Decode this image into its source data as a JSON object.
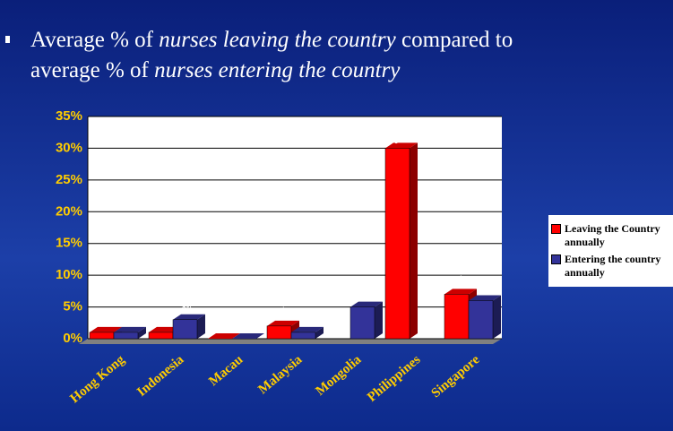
{
  "chart_data": {
    "type": "bar",
    "title": [
      "Average % of ",
      "nurses leaving the country",
      " compared to",
      "average % of ",
      "nurses entering the country"
    ],
    "title_italic": [
      false,
      true,
      false,
      false,
      true
    ],
    "categories": [
      "Hong Kong",
      "Indonesia",
      "Macau",
      "Malaysia",
      "Mongolia",
      "Philippines",
      "Singapore"
    ],
    "series": [
      {
        "name": "Leaving the Country annually",
        "color": "#ff0000",
        "values": [
          1,
          1,
          0,
          2,
          null,
          30,
          7
        ],
        "value_labels": [
          "1%",
          "1%",
          "0%",
          "2%",
          null,
          "30%",
          "7%"
        ]
      },
      {
        "name": "Entering the country annually",
        "color": "#333399",
        "values": [
          1,
          3,
          0,
          1,
          5,
          null,
          6
        ],
        "value_labels": [
          "1%",
          "3%",
          "0%",
          "1%",
          "5%",
          null,
          "6%"
        ]
      }
    ],
    "ylim": [
      0,
      35
    ],
    "yticks": [
      {
        "value": 0,
        "label": "0%"
      },
      {
        "value": 5,
        "label": "5%"
      },
      {
        "value": 10,
        "label": "10%"
      },
      {
        "value": 15,
        "label": "15%"
      },
      {
        "value": 20,
        "label": "20%"
      },
      {
        "value": 25,
        "label": "25%"
      },
      {
        "value": 30,
        "label": "30%"
      },
      {
        "value": 35,
        "label": "35%"
      }
    ],
    "grid": true
  }
}
